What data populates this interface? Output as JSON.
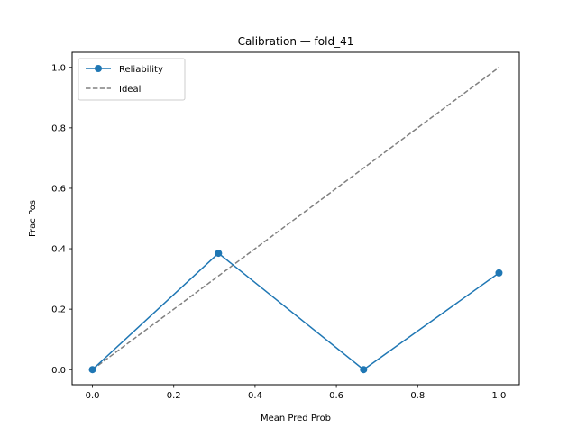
{
  "chart_data": {
    "type": "line",
    "title": "Calibration — fold_41",
    "xlabel": "Mean Pred Prob",
    "ylabel": "Frac Pos",
    "xlim": [
      -0.05,
      1.05
    ],
    "ylim": [
      -0.05,
      1.05
    ],
    "xticks": [
      0.0,
      0.2,
      0.4,
      0.6,
      0.8,
      1.0
    ],
    "xtick_labels": [
      "0.0",
      "0.2",
      "0.4",
      "0.6",
      "0.8",
      "1.0"
    ],
    "yticks": [
      0.0,
      0.2,
      0.4,
      0.6,
      0.8,
      1.0
    ],
    "ytick_labels": [
      "0.0",
      "0.2",
      "0.4",
      "0.6",
      "0.8",
      "1.0"
    ],
    "grid": false,
    "legend_position": "top-left",
    "series": [
      {
        "name": "Reliability",
        "style": "solid-with-markers",
        "color": "#1f77b4",
        "x": [
          0.0,
          0.31,
          0.667,
          1.0
        ],
        "y": [
          0.0,
          0.385,
          0.0,
          0.32
        ]
      },
      {
        "name": "Ideal",
        "style": "dashed",
        "color": "#808080",
        "x": [
          0.0,
          1.0
        ],
        "y": [
          0.0,
          1.0
        ]
      }
    ]
  }
}
